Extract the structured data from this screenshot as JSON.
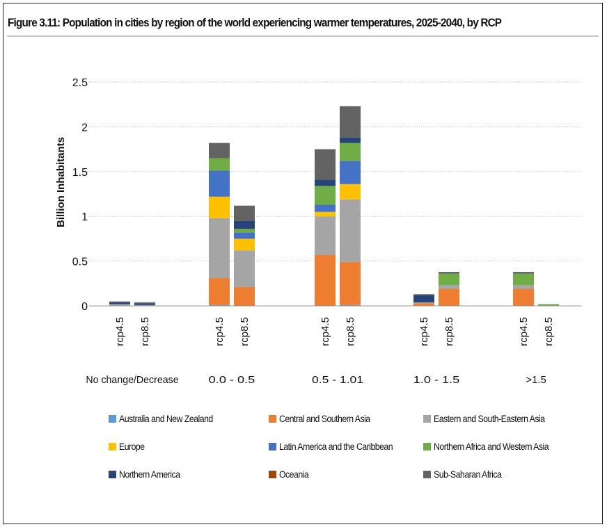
{
  "title": "Figure 3.11: Population in cities by region of the world experiencing warmer temperatures, 2025-2040, by RCP",
  "chart_data": {
    "type": "bar",
    "stacked": true,
    "title": "Figure 3.11: Population in cities by region of the world experiencing warmer temperatures, 2025-2040, by RCP",
    "ylabel": "Billion Inhabitants",
    "xlabel": "",
    "ylim": [
      0,
      2.5
    ],
    "yticks": [
      "0",
      "0.5",
      "1",
      "1.5",
      "2",
      "2.5"
    ],
    "ytick_values": [
      0,
      0.5,
      1,
      1.5,
      2,
      2.5
    ],
    "grid": true,
    "legend_position": "bottom",
    "groups": [
      "No change/Decrease",
      "0.0 - 0.5",
      "0.5 - 1.01",
      "1.0 - 1.5",
      ">1.5"
    ],
    "scenarios": [
      "rcp4.5",
      "rcp8.5"
    ],
    "categories": [
      "rcp4.5",
      "rcp8.5",
      "rcp4.5",
      "rcp8.5",
      "rcp4.5",
      "rcp8.5",
      "rcp4.5",
      "rcp8.5",
      "rcp4.5",
      "rcp8.5"
    ],
    "series": [
      {
        "name": "Australia and New Zealand",
        "color": "#5b9bd5",
        "values": [
          0.0,
          0.0,
          0.01,
          0.0,
          0.0,
          0.01,
          0.0,
          0.0,
          0.0,
          0.0
        ]
      },
      {
        "name": "Central and Southern Asia",
        "color": "#ed7d31",
        "values": [
          0.0,
          0.0,
          0.3,
          0.21,
          0.57,
          0.48,
          0.03,
          0.19,
          0.19,
          0.0
        ]
      },
      {
        "name": "Eastern and South-Eastern Asia",
        "color": "#a5a5a5",
        "values": [
          0.02,
          0.01,
          0.67,
          0.41,
          0.43,
          0.7,
          0.01,
          0.04,
          0.04,
          0.0
        ]
      },
      {
        "name": "Europe",
        "color": "#ffc000",
        "values": [
          0.0,
          0.0,
          0.24,
          0.13,
          0.05,
          0.17,
          0.0,
          0.0,
          0.0,
          0.0
        ]
      },
      {
        "name": "Latin America and the Caribbean",
        "color": "#4472c4",
        "values": [
          0.0,
          0.0,
          0.29,
          0.07,
          0.08,
          0.26,
          0.0,
          0.0,
          0.0,
          0.0
        ]
      },
      {
        "name": "Northern Africa and Western Asia",
        "color": "#70ad47",
        "values": [
          0.0,
          0.0,
          0.14,
          0.04,
          0.21,
          0.2,
          0.0,
          0.13,
          0.13,
          0.02
        ]
      },
      {
        "name": "Northern America",
        "color": "#264478",
        "values": [
          0.02,
          0.02,
          0.0,
          0.09,
          0.07,
          0.06,
          0.08,
          0.0,
          0.0,
          0.0
        ]
      },
      {
        "name": "Oceania",
        "color": "#9e480e",
        "values": [
          0.0,
          0.0,
          0.0,
          0.0,
          0.0,
          0.0,
          0.0,
          0.0,
          0.0,
          0.0
        ]
      },
      {
        "name": "Sub-Saharan Africa",
        "color": "#636363",
        "values": [
          0.01,
          0.01,
          0.17,
          0.17,
          0.34,
          0.35,
          0.01,
          0.02,
          0.02,
          0.0
        ]
      }
    ]
  }
}
